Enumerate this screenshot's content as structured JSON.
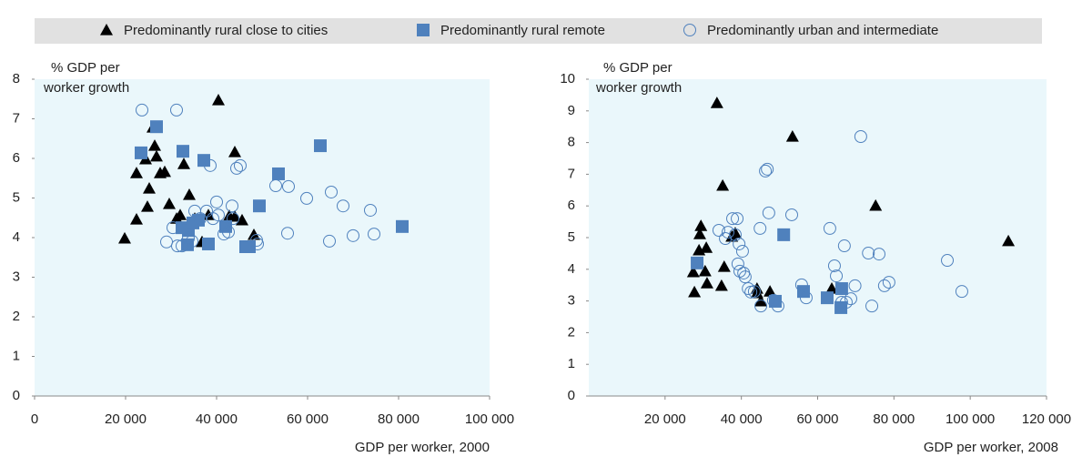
{
  "chart_data": [
    {
      "type": "scatter",
      "y_label": [
        "% GDP per",
        "worker growth"
      ],
      "x_label": "GDP per worker, 2000",
      "xlim": [
        0,
        100000
      ],
      "ylim": [
        0,
        8
      ],
      "xticks": [
        0,
        {
          "value": 20000,
          "label": "20 000"
        },
        {
          "value": 40000,
          "label": "40 000"
        },
        {
          "value": 60000,
          "label": "60 000"
        },
        {
          "value": 80000,
          "label": "80 000"
        },
        {
          "value": 100000,
          "label": "100 000"
        }
      ],
      "yticks": [
        0,
        1,
        2,
        3,
        4,
        5,
        6,
        7,
        8
      ],
      "series": [
        {
          "name": "Predominantly rural close to cities",
          "marker": "triangle",
          "color": "#000000",
          "x": [
            19800,
            22400,
            22400,
            24800,
            25200,
            24400,
            26000,
            26400,
            26800,
            27600,
            28600,
            29600,
            31200,
            32000,
            32800,
            34000,
            35200,
            36800,
            38200,
            40400,
            42800,
            44000,
            44000,
            45600,
            48200
          ],
          "y": [
            3.98,
            4.46,
            5.63,
            4.78,
            5.24,
            5.98,
            6.78,
            6.32,
            6.05,
            5.63,
            5.66,
            4.85,
            4.48,
            4.57,
            5.86,
            5.08,
            4.48,
            3.89,
            4.57,
            7.47,
            4.55,
            6.16,
            4.53,
            4.44,
            4.07
          ]
        },
        {
          "name": "Predominantly rural remote",
          "marker": "square",
          "color": "#4f81bd",
          "x": [
            23400,
            26800,
            32400,
            32600,
            33800,
            33600,
            34800,
            36000,
            37200,
            38200,
            42000,
            46400,
            47200,
            49400,
            53600,
            62800,
            80800
          ],
          "y": [
            6.14,
            6.8,
            4.25,
            6.18,
            4.18,
            3.82,
            4.37,
            4.44,
            5.95,
            3.84,
            4.28,
            3.77,
            3.77,
            4.8,
            5.61,
            6.32,
            4.28
          ]
        },
        {
          "name": "Predominantly urban and intermediate",
          "marker": "circle-open",
          "color": "#4f81bd",
          "x": [
            23600,
            31200,
            29000,
            30400,
            31400,
            32400,
            33800,
            34600,
            35200,
            36400,
            37800,
            38600,
            39200,
            40000,
            40400,
            41600,
            42600,
            43400,
            43600,
            44400,
            45200,
            48800,
            49000,
            53000,
            55800,
            55600,
            59800,
            65200,
            64800,
            67800,
            70000,
            73800,
            74600
          ],
          "y": [
            7.22,
            7.22,
            3.89,
            4.25,
            3.79,
            3.79,
            3.98,
            3.91,
            4.67,
            4.48,
            4.67,
            5.82,
            4.48,
            4.9,
            4.57,
            4.09,
            4.14,
            4.8,
            4.48,
            5.75,
            5.82,
            3.93,
            3.84,
            5.31,
            5.29,
            4.11,
            4.99,
            5.15,
            3.91,
            4.8,
            4.05,
            4.69,
            4.09
          ]
        }
      ]
    },
    {
      "type": "scatter",
      "y_label": [
        "% GDP per",
        "worker growth"
      ],
      "x_label": "GDP per worker, 2008",
      "xlim": [
        0,
        120000
      ],
      "ylim": [
        0,
        10
      ],
      "xticks": [
        {
          "value": 20000,
          "label": "20 000"
        },
        {
          "value": 40000,
          "label": "40 000"
        },
        {
          "value": 60000,
          "label": "60 000"
        },
        {
          "value": 80000,
          "label": "80 000"
        },
        {
          "value": 100000,
          "label": "100 000"
        },
        {
          "value": 120000,
          "label": "120 000"
        }
      ],
      "yticks": [
        0,
        1,
        2,
        3,
        4,
        5,
        6,
        7,
        8,
        9,
        10
      ],
      "series": [
        {
          "marker": "triangle",
          "color": "#000000",
          "x": [
            27400,
            27700,
            28900,
            29100,
            29400,
            30500,
            31000,
            30800,
            33600,
            34800,
            35100,
            35500,
            37500,
            38400,
            44100,
            44100,
            45100,
            47500,
            53400,
            63700,
            75200,
            110000
          ],
          "y": [
            3.91,
            3.28,
            4.6,
            5.11,
            5.37,
            3.94,
            3.56,
            4.68,
            9.25,
            3.48,
            6.64,
            4.08,
            5.03,
            5.14,
            3.39,
            3.25,
            2.99,
            3.3,
            8.19,
            3.39,
            6.01,
            4.89
          ]
        },
        {
          "marker": "square",
          "color": "#4f81bd",
          "x": [
            28400,
            48900,
            51100,
            56300,
            62500,
            66300,
            66100
          ],
          "y": [
            4.2,
            2.99,
            5.09,
            3.3,
            3.1,
            3.39,
            2.79
          ]
        },
        {
          "marker": "circle-open",
          "color": "#4f81bd",
          "x": [
            34100,
            35800,
            36500,
            37700,
            38400,
            38900,
            39400,
            39100,
            39600,
            40300,
            40600,
            41000,
            41800,
            42500,
            43400,
            45100,
            44900,
            46300,
            46800,
            47200,
            48400,
            49600,
            53200,
            55800,
            57000,
            63200,
            64400,
            64900,
            66300,
            67500,
            68700,
            69800,
            71300,
            67000,
            73300,
            74200,
            76100,
            77500,
            78700,
            94000,
            97800
          ],
          "y": [
            5.23,
            4.97,
            5.17,
            5.6,
            5.09,
            5.6,
            4.8,
            4.17,
            3.94,
            4.57,
            3.88,
            3.76,
            3.39,
            3.28,
            3.3,
            2.84,
            5.29,
            7.1,
            7.16,
            5.78,
            3.02,
            2.84,
            5.72,
            3.51,
            3.1,
            5.29,
            4.11,
            3.79,
            2.96,
            2.96,
            3.07,
            3.48,
            8.19,
            4.74,
            4.51,
            2.84,
            4.48,
            3.48,
            3.59,
            4.28,
            3.3
          ]
        }
      ]
    }
  ]
}
